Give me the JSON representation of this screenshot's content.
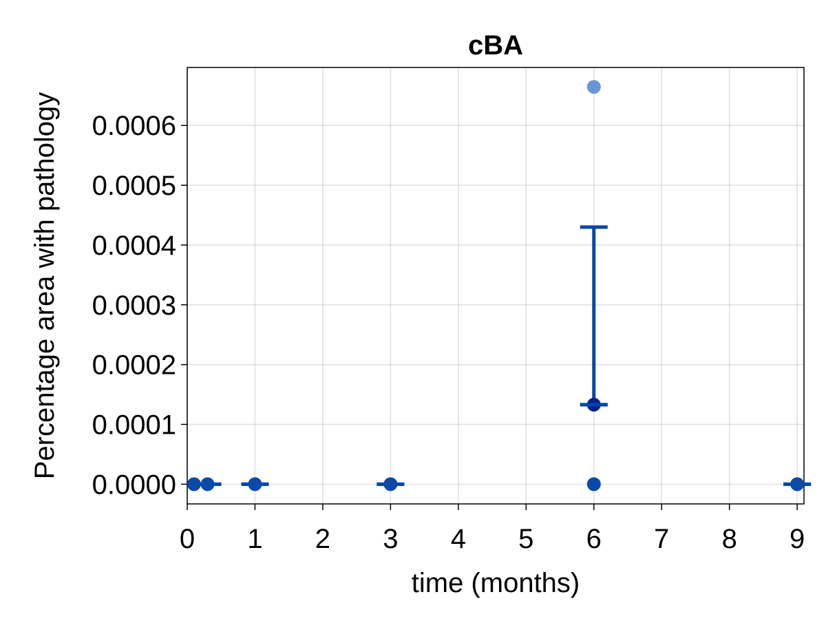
{
  "chart_data": {
    "type": "scatter",
    "title": "cBA",
    "xlabel": "time (months)",
    "ylabel": "Percentage area with pathology",
    "xlim": [
      0,
      9.1
    ],
    "ylim": [
      -3.3e-05,
      0.000697
    ],
    "xticks": [
      0,
      1,
      2,
      3,
      4,
      5,
      6,
      7,
      8,
      9
    ],
    "xtick_labels": [
      "0",
      "1",
      "2",
      "3",
      "4",
      "5",
      "6",
      "7",
      "8",
      "9"
    ],
    "yticks": [
      0.0,
      0.0001,
      0.0002,
      0.0003,
      0.0004,
      0.0005,
      0.0006
    ],
    "ytick_labels": [
      "0.0000",
      "0.0001",
      "0.0002",
      "0.0003",
      "0.0004",
      "0.0005",
      "0.0006"
    ],
    "grid": true,
    "points": [
      {
        "x": 0.1,
        "y": 0.0
      },
      {
        "x": 0.3,
        "y": 0.0
      },
      {
        "x": 1,
        "y": 0.0
      },
      {
        "x": 3,
        "y": 0.0
      },
      {
        "x": 6,
        "y": 0.0
      },
      {
        "x": 6,
        "y": 0.0006645
      },
      {
        "x": 9,
        "y": 0.0
      }
    ],
    "means": [
      {
        "x": 0.3,
        "y": 0.0
      },
      {
        "x": 1,
        "y": 0.0
      },
      {
        "x": 3,
        "y": 0.0
      },
      {
        "x": 6,
        "y": 0.000133
      },
      {
        "x": 9,
        "y": 0.0
      }
    ],
    "error_bars": [
      {
        "x": 0.3,
        "low": 0.0,
        "high": 0.0
      },
      {
        "x": 1,
        "low": 0.0,
        "high": 0.0
      },
      {
        "x": 3,
        "low": 0.0,
        "high": 0.0
      },
      {
        "x": 6,
        "low": 0.000133,
        "high": 0.00043
      },
      {
        "x": 9,
        "low": 0.0,
        "high": 0.0
      }
    ],
    "colors": {
      "point": "#0b4aa8",
      "point_light": "#6a95d4",
      "mean_point": "#0a1f8f",
      "error_bar": "#0047ab"
    }
  }
}
